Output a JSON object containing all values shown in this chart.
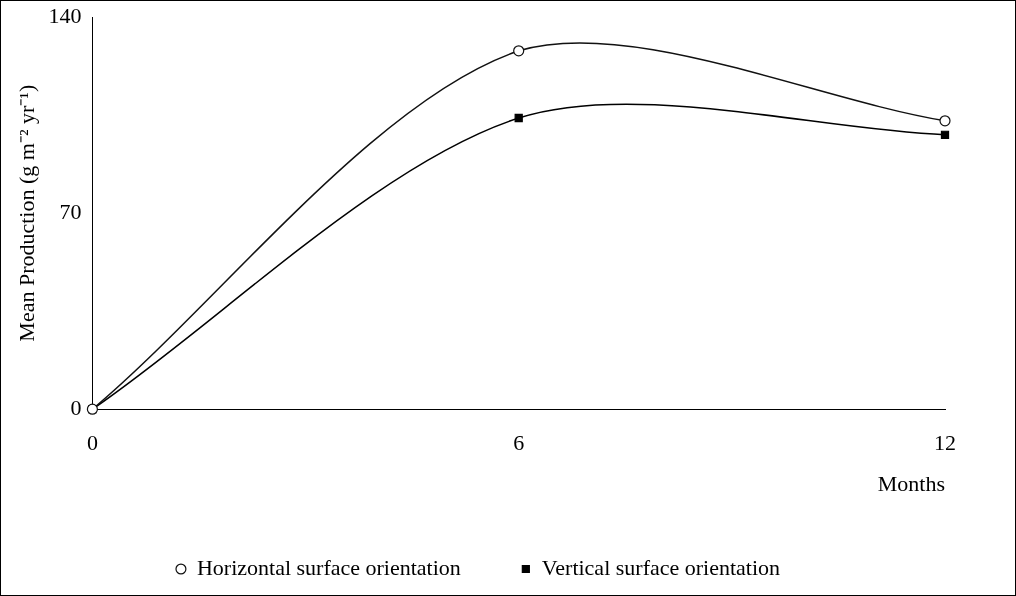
{
  "chart_data": {
    "type": "line",
    "xlabel": "Months",
    "ylabel": "Mean Production (g m⁻² yr⁻¹)",
    "x": [
      0,
      6,
      12
    ],
    "xlim": [
      0,
      12
    ],
    "xticks": [
      0,
      6,
      12
    ],
    "ylim": [
      0,
      140
    ],
    "yticks": [
      0,
      70,
      140
    ],
    "grid": false,
    "legend": "bottom",
    "line_style": "solid",
    "series": [
      {
        "name": "Horizontal surface orientation",
        "color": "#111111",
        "marker": "circle",
        "values": [
          0,
          128,
          103
        ]
      },
      {
        "name": "Vertical surface orientation",
        "color": "#000000",
        "marker": "square",
        "values": [
          0,
          104,
          98
        ]
      }
    ]
  }
}
